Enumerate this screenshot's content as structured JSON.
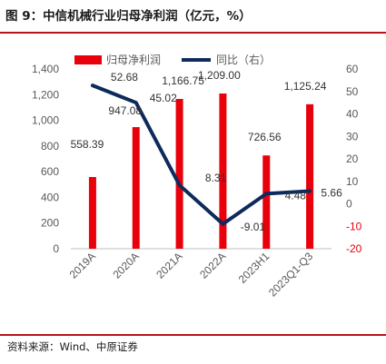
{
  "figure": {
    "title": "图 9：中信机械行业归母净利润（亿元，%）",
    "source": "资料来源：Wind、中原证券"
  },
  "colors": {
    "bar": "#e8000b",
    "line": "#0d2a5c",
    "axis_text": "#595959",
    "negative_tick": "#e8000b",
    "rule": "#b8141c"
  },
  "chart_data": {
    "type": "bar",
    "categories": [
      "2019A",
      "2020A",
      "2021A",
      "2022A",
      "2023H1",
      "2023Q1-Q3"
    ],
    "series": [
      {
        "name": "归母净利润",
        "type": "bar",
        "axis": "left",
        "values": [
          558.39,
          947.08,
          1166.75,
          1209.0,
          726.56,
          1125.24
        ],
        "labels": [
          "558.39",
          "947.08",
          "1,166.75",
          "1,209.00",
          "726.56",
          "1,125.24"
        ]
      },
      {
        "name": "同比（右）",
        "type": "line",
        "axis": "right",
        "values": [
          52.68,
          45.02,
          8.31,
          -9.01,
          4.48,
          5.66
        ],
        "labels": [
          "52.68",
          "45.02",
          "8.31",
          "-9.01",
          "4.48",
          "5.66"
        ]
      }
    ],
    "y_left": {
      "ylim": [
        0,
        1400
      ],
      "ticks": [
        0,
        200,
        400,
        600,
        800,
        1000,
        1200,
        1400
      ],
      "tick_labels": [
        "0",
        "200",
        "400",
        "600",
        "800",
        "1,000",
        "1,200",
        "1,400"
      ]
    },
    "y_right": {
      "ylim": [
        -20,
        60
      ],
      "ticks": [
        -20,
        -10,
        0,
        10,
        20,
        30,
        40,
        50,
        60
      ],
      "tick_labels": [
        "-20",
        "-10",
        "0",
        "10",
        "20",
        "30",
        "40",
        "50",
        "60"
      ]
    },
    "legend": {
      "placement": "top-left"
    },
    "grid": false
  }
}
